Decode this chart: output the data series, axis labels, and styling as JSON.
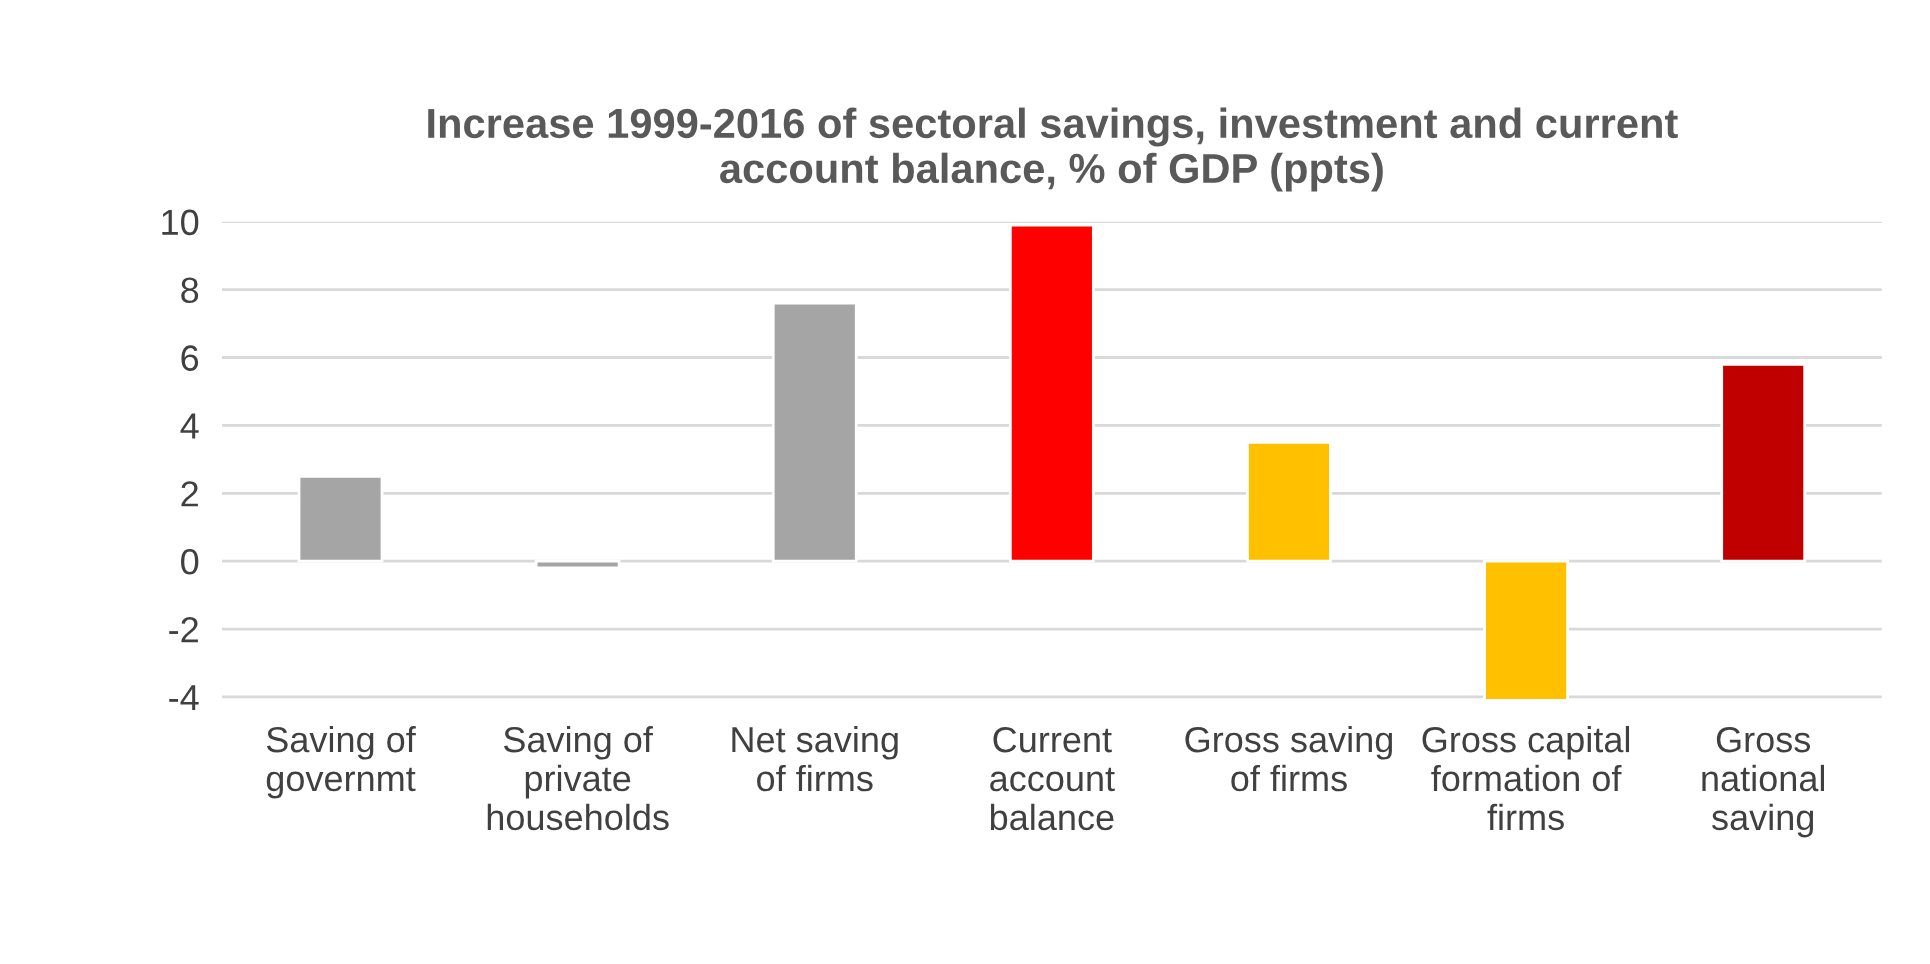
{
  "chart_data": {
    "type": "bar",
    "title": "Increase 1999-2016 of sectoral savings, investment and current\naccount balance, % of GDP (ppts)",
    "categories": [
      "Saving of\ngovernmt",
      "Saving of\nprivate\nhouseholds",
      "Net saving\nof firms",
      "Current\naccount\nbalance",
      "Gross saving\nof firms",
      "Gross capital\nformation of\nfirms",
      "Gross\nnational\nsaving"
    ],
    "values": [
      2.5,
      -0.2,
      7.6,
      9.9,
      3.5,
      -4.1,
      5.8
    ],
    "colors": [
      "#a5a5a5",
      "#a5a5a5",
      "#a5a5a5",
      "#ff0000",
      "#ffc000",
      "#ffc000",
      "#c00000"
    ],
    "ylim": [
      -4.2,
      10
    ],
    "yticks": [
      -4,
      -2,
      0,
      2,
      4,
      6,
      8,
      10
    ],
    "grid": "y"
  }
}
